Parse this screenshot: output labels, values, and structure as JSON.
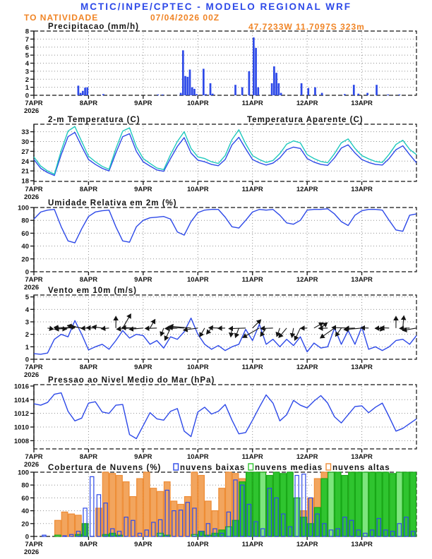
{
  "header": {
    "title": "MCTIC/INPE/CPTEC - MODELO REGIONAL WRF",
    "station": "TO NATIVIDADE",
    "run": "07/04/2026 00Z",
    "coords": "47.7233W 11.7097S 323m"
  },
  "colors": {
    "title_blue": "#2d49e8",
    "orange_text": "#f08425",
    "line_blue": "#2d49e8",
    "line_cyan": "#1fc9bd",
    "precip_bar": "#2d49e8",
    "cloud_low_stroke": "#2d49e8",
    "cloud_mid_fill": "#2fc42f",
    "cloud_mid_light": "#7de57d",
    "cloud_mid_stroke": "#17a817",
    "cloud_high_fill": "#f2a55e",
    "cloud_high_stroke": "#ee8c35",
    "axis": "#141414",
    "grid": "#909090",
    "wind_arrow": "#141414"
  },
  "x_axis": {
    "tick_labels": [
      "7APR",
      "8APR",
      "9APR",
      "10APR",
      "11APR",
      "12APR",
      "13APR"
    ],
    "year_label": "2026",
    "tick_hours": [
      0,
      24,
      48,
      72,
      96,
      120,
      144
    ],
    "hours_span": 168
  },
  "chart_data": [
    {
      "id": "precipitacao",
      "type": "bar",
      "title": "Precipitacao (mm/h)",
      "ylabel": "mm/h",
      "ylim": [
        0,
        8
      ],
      "yticks": [
        0,
        1,
        2,
        3,
        4,
        5,
        6,
        7,
        8
      ],
      "bars_hourly": [
        [
          19,
          1.2
        ],
        [
          20,
          0.3
        ],
        [
          21,
          0.55
        ],
        [
          22,
          0.95
        ],
        [
          23,
          1.0
        ],
        [
          30,
          0.15
        ],
        [
          54,
          0.1
        ],
        [
          56,
          0.1
        ],
        [
          64,
          0.3
        ],
        [
          65,
          5.6
        ],
        [
          66,
          2.4
        ],
        [
          67,
          2.3
        ],
        [
          68,
          3.2
        ],
        [
          69,
          1.0
        ],
        [
          70,
          0.8
        ],
        [
          71,
          0.15
        ],
        [
          74,
          3.3
        ],
        [
          75,
          0.15
        ],
        [
          77,
          1.5
        ],
        [
          78,
          0.2
        ],
        [
          88,
          1.3
        ],
        [
          91,
          1.0
        ],
        [
          94,
          3.0
        ],
        [
          96,
          7.2
        ],
        [
          97,
          5.9
        ],
        [
          98,
          1.0
        ],
        [
          104,
          1.5
        ],
        [
          105,
          3.6
        ],
        [
          106,
          2.8
        ],
        [
          107,
          1.5
        ],
        [
          108,
          0.3
        ],
        [
          117,
          1.5
        ],
        [
          120,
          0.9
        ],
        [
          123,
          1.0
        ],
        [
          126,
          0.3
        ],
        [
          136,
          0.15
        ],
        [
          140,
          1.3
        ],
        [
          142,
          0.2
        ],
        [
          146,
          0.3
        ],
        [
          150,
          1.3
        ],
        [
          155,
          0.1
        ],
        [
          160,
          0.1
        ]
      ]
    },
    {
      "id": "temperatura",
      "type": "line",
      "title": "2-m Temperatura (C)",
      "title_right": "Temperatura Aparente (C)",
      "ylim": [
        18,
        33
      ],
      "yticks": [
        18,
        21,
        24,
        27,
        30,
        33
      ],
      "step_hours": 3,
      "series": [
        {
          "name": "2-m Temperatura (C)",
          "color_key": "line_blue",
          "values": [
            24.5,
            21.8,
            20.5,
            19.6,
            26.0,
            31.5,
            32.8,
            28.5,
            24.5,
            23.0,
            21.8,
            21.0,
            26.5,
            31.5,
            32.4,
            27.0,
            23.8,
            22.5,
            21.3,
            20.9,
            24.8,
            28.5,
            31.2,
            26.5,
            24.3,
            23.8,
            23.0,
            22.6,
            24.5,
            29.0,
            31.3,
            27.8,
            24.5,
            23.5,
            22.8,
            23.4,
            25.0,
            27.5,
            28.3,
            27.9,
            24.8,
            23.7,
            23.0,
            22.7,
            25.0,
            28.0,
            29.0,
            26.5,
            24.5,
            23.6,
            23.0,
            22.8,
            24.8,
            27.5,
            28.7,
            26.0,
            23.5
          ]
        },
        {
          "name": "Temperatura Aparente (C)",
          "color_key": "line_cyan",
          "values": [
            25.3,
            22.5,
            21.0,
            20.0,
            27.2,
            33.2,
            34.6,
            30.0,
            25.5,
            23.8,
            22.4,
            21.5,
            27.8,
            33.2,
            34.2,
            28.4,
            24.8,
            23.3,
            21.9,
            21.4,
            26.0,
            30.0,
            33.0,
            27.9,
            25.3,
            24.8,
            23.8,
            23.3,
            25.7,
            30.6,
            33.6,
            29.3,
            25.7,
            24.5,
            23.6,
            24.2,
            26.3,
            29.2,
            30.2,
            29.6,
            26.0,
            24.8,
            23.9,
            23.5,
            26.3,
            29.6,
            30.8,
            27.9,
            25.7,
            24.7,
            23.9,
            23.6,
            26.1,
            29.1,
            30.4,
            27.6,
            26.0
          ]
        }
      ]
    },
    {
      "id": "umidade",
      "type": "line",
      "title": "Umidade Relativa em 2m (%)",
      "ylim": [
        0,
        100
      ],
      "yticks": [
        0,
        20,
        40,
        60,
        80,
        100
      ],
      "step_hours": 3,
      "series": [
        {
          "name": "Umidade Relativa",
          "color_key": "line_blue",
          "values": [
            82,
            93,
            96,
            97,
            70,
            48,
            45,
            67,
            86,
            93,
            95,
            96,
            70,
            48,
            46,
            70,
            80,
            84,
            85,
            86,
            82,
            62,
            57,
            78,
            92,
            96,
            97,
            97,
            85,
            70,
            68,
            80,
            93,
            97,
            96,
            97,
            88,
            76,
            74,
            80,
            96,
            97,
            97,
            98,
            90,
            78,
            72,
            88,
            95,
            97,
            97,
            96,
            80,
            65,
            63,
            88,
            90
          ]
        }
      ]
    },
    {
      "id": "vento",
      "type": "wind",
      "title": "Vento em 10m (m/s)",
      "ylim": [
        0,
        5
      ],
      "yticks": [
        0,
        1,
        2,
        3,
        4,
        5
      ],
      "step_hours": 3,
      "speed": [
        0.45,
        0.4,
        0.5,
        1.6,
        2.0,
        1.8,
        3.1,
        2.0,
        0.75,
        1.0,
        1.2,
        0.8,
        1.5,
        2.3,
        1.7,
        2.0,
        1.9,
        1.2,
        1.5,
        0.9,
        1.8,
        1.6,
        2.2,
        3.3,
        2.0,
        1.2,
        0.8,
        1.1,
        0.7,
        1.0,
        1.2,
        2.4,
        1.5,
        2.8,
        1.2,
        1.6,
        1.0,
        1.6,
        1.1,
        1.8,
        0.6,
        1.3,
        0.9,
        1.0,
        2.5,
        1.2,
        2.3,
        1.2,
        2.6,
        0.8,
        1.0,
        0.7,
        1.0,
        1.5,
        1.6,
        1.2,
        1.9
      ],
      "vector_base": 2.5,
      "vector_angles_deg": [
        0,
        0,
        350,
        355,
        5,
        185,
        178,
        170,
        182,
        178,
        172,
        185,
        90,
        60,
        185,
        178,
        185,
        60,
        182,
        250,
        245,
        182,
        178,
        175,
        188,
        240,
        230,
        178,
        182,
        262,
        250,
        182,
        45,
        210,
        235,
        182,
        250,
        230,
        260,
        245,
        182,
        30,
        40,
        182,
        215,
        235,
        178,
        182,
        185,
        178,
        350,
        182,
        178,
        90,
        85,
        182,
        190
      ]
    },
    {
      "id": "pressao",
      "type": "line",
      "title": "Pressao ao Nivel Medio do Mar (hPa)",
      "ylim": [
        1008,
        1016
      ],
      "yticks": [
        1008,
        1010,
        1012,
        1014,
        1016
      ],
      "step_hours": 3,
      "series": [
        {
          "name": "Pressao ao Nivel Medio do Mar",
          "color_key": "line_blue",
          "values": [
            1013.4,
            1013.2,
            1013.6,
            1014.8,
            1015.0,
            1012.3,
            1010.9,
            1011.3,
            1013.5,
            1013.7,
            1012.2,
            1012.0,
            1013.2,
            1013.3,
            1008.9,
            1008.3,
            1010.2,
            1012.1,
            1011.2,
            1011.0,
            1012.3,
            1012.7,
            1009.4,
            1008.6,
            1012.2,
            1012.9,
            1011.9,
            1012.3,
            1013.3,
            1011.0,
            1009.0,
            1009.2,
            1011.0,
            1012.9,
            1014.7,
            1013.5,
            1010.9,
            1011.8,
            1013.9,
            1013.2,
            1012.8,
            1013.8,
            1014.6,
            1013.5,
            1011.5,
            1010.6,
            1011.8,
            1013.0,
            1013.1,
            1012.1,
            1012.9,
            1013.5,
            1011.5,
            1009.4,
            1009.8,
            1010.5,
            1011.2
          ]
        }
      ]
    },
    {
      "id": "nuvens",
      "type": "cloudbars",
      "title": "Cobertura de Nuvens (%)",
      "ylim": [
        0,
        100
      ],
      "yticks": [
        0,
        20,
        40,
        60,
        80,
        100
      ],
      "step_hours": 3,
      "legend": [
        {
          "label": "nuvens baixas",
          "color_key": "cloud_low_stroke"
        },
        {
          "label": "nuvens medias",
          "color_key": "cloud_mid_fill"
        },
        {
          "label": "nuvens altas",
          "color_key": "cloud_high_stroke"
        }
      ],
      "series": {
        "altas": [
          0,
          0,
          0,
          25,
          38,
          35,
          33,
          5,
          0,
          44,
          100,
          98,
          95,
          85,
          62,
          90,
          100,
          75,
          70,
          85,
          55,
          50,
          62,
          100,
          95,
          55,
          40,
          75,
          100,
          98,
          90,
          85,
          30,
          100,
          95,
          88,
          70,
          60,
          55,
          40,
          60,
          90,
          100,
          30,
          10,
          35,
          100,
          90,
          95,
          100,
          98,
          95,
          90,
          85,
          80,
          90,
          95
        ],
        "medias": [
          0,
          0,
          0,
          2,
          0,
          0,
          3,
          20,
          0,
          0,
          3,
          5,
          2,
          0,
          0,
          0,
          0,
          0,
          5,
          2,
          0,
          0,
          0,
          3,
          8,
          2,
          5,
          10,
          15,
          25,
          85,
          100,
          100,
          100,
          95,
          100,
          98,
          100,
          60,
          30,
          20,
          45,
          90,
          100,
          100,
          95,
          100,
          100,
          100,
          100,
          100,
          100,
          98,
          100,
          100,
          100,
          100
        ],
        "baixas": [
          0,
          2,
          0,
          0,
          1,
          3,
          8,
          44,
          93,
          65,
          52,
          12,
          8,
          30,
          25,
          5,
          10,
          22,
          26,
          72,
          40,
          41,
          53,
          44,
          8,
          20,
          12,
          5,
          38,
          88,
          80,
          50,
          23,
          12,
          75,
          60,
          35,
          15,
          95,
          97,
          60,
          35,
          20,
          10,
          12,
          30,
          25,
          10,
          5,
          10,
          28,
          10,
          8,
          20,
          30,
          8,
          5
        ]
      }
    }
  ]
}
